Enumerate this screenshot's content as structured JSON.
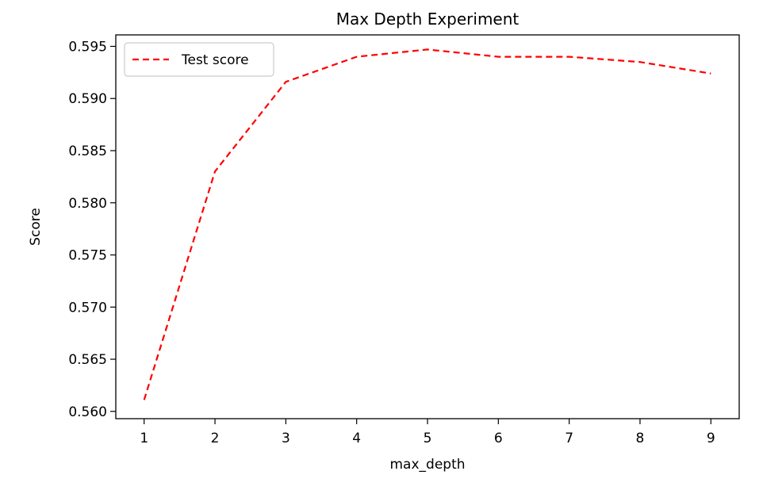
{
  "chart_data": {
    "type": "line",
    "title": "Max Depth Experiment",
    "xlabel": "max_depth",
    "ylabel": "Score",
    "x": [
      1,
      2,
      3,
      4,
      5,
      6,
      7,
      8,
      9
    ],
    "xticks": [
      "1",
      "2",
      "3",
      "4",
      "5",
      "6",
      "7",
      "8",
      "9"
    ],
    "yticks": [
      "0.560",
      "0.565",
      "0.570",
      "0.575",
      "0.580",
      "0.585",
      "0.590",
      "0.595"
    ],
    "xlim": [
      0.6,
      9.4
    ],
    "ylim": [
      0.5593,
      0.5961
    ],
    "grid": false,
    "legend_position": "upper-left",
    "series": [
      {
        "name": "Test score",
        "color": "#ff0000",
        "line_style": "dashed",
        "values": [
          0.5611,
          0.583,
          0.5916,
          0.594,
          0.5947,
          0.594,
          0.594,
          0.5935,
          0.5924
        ]
      }
    ]
  }
}
